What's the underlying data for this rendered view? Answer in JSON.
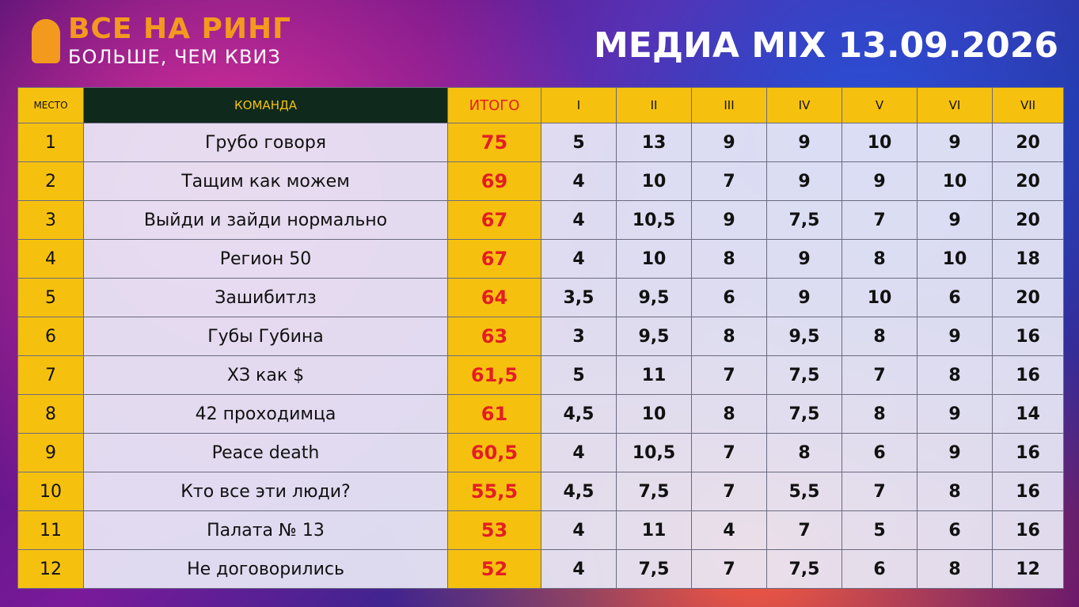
{
  "header": {
    "logo_title": "ВСЕ НА РИНГ",
    "logo_subtitle": "БОЛЬШЕ, ЧЕМ КВИЗ",
    "title": "МЕДИА MIX 13.09.2026"
  },
  "table": {
    "columns": [
      "МЕСТО",
      "КОМАНДА",
      "ИТОГО",
      "I",
      "II",
      "III",
      "IV",
      "V",
      "VI",
      "VII"
    ],
    "rows": [
      [
        "1",
        "Грубо говоря",
        "75",
        "5",
        "13",
        "9",
        "9",
        "10",
        "9",
        "20"
      ],
      [
        "2",
        "Тащим как можем",
        "69",
        "4",
        "10",
        "7",
        "9",
        "9",
        "10",
        "20"
      ],
      [
        "3",
        "Выйди и зайди нормально",
        "67",
        "4",
        "10,5",
        "9",
        "7,5",
        "7",
        "9",
        "20"
      ],
      [
        "4",
        "Регион 50",
        "67",
        "4",
        "10",
        "8",
        "9",
        "8",
        "10",
        "18"
      ],
      [
        "5",
        "Зашибитлз",
        "64",
        "3,5",
        "9,5",
        "6",
        "9",
        "10",
        "6",
        "20"
      ],
      [
        "6",
        "Губы Губина",
        "63",
        "3",
        "9,5",
        "8",
        "9,5",
        "8",
        "9",
        "16"
      ],
      [
        "7",
        "ХЗ как $",
        "61,5",
        "5",
        "11",
        "7",
        "7,5",
        "7",
        "8",
        "16"
      ],
      [
        "8",
        "42 проходимца",
        "61",
        "4,5",
        "10",
        "8",
        "7,5",
        "8",
        "9",
        "14"
      ],
      [
        "9",
        "Peace death",
        "60,5",
        "4",
        "10,5",
        "7",
        "8",
        "6",
        "9",
        "16"
      ],
      [
        "10",
        "Кто все эти люди?",
        "55,5",
        "4,5",
        "7,5",
        "7",
        "5,5",
        "7",
        "8",
        "16"
      ],
      [
        "11",
        "Палата № 13",
        "53",
        "4",
        "11",
        "4",
        "7",
        "5",
        "6",
        "16"
      ],
      [
        "12",
        "Не договорились",
        "52",
        "4",
        "7,5",
        "7",
        "7,5",
        "6",
        "8",
        "12"
      ]
    ]
  }
}
